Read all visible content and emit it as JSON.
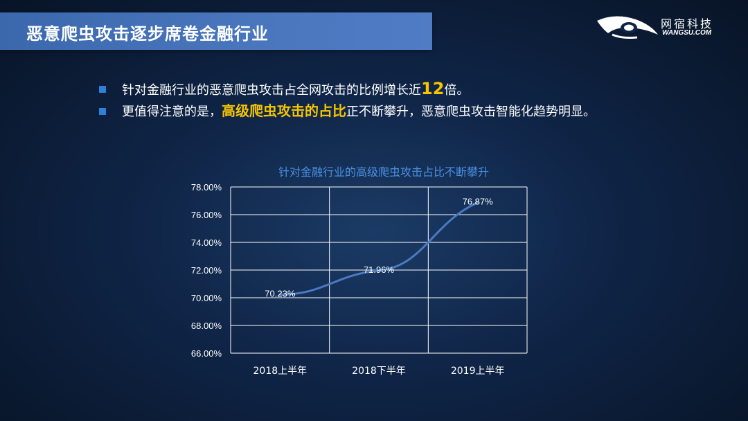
{
  "header": {
    "title": "恶意爬虫攻击逐步席卷金融行业"
  },
  "logo": {
    "cn_text": "网宿科技",
    "en_text": "WANGSU.COM"
  },
  "bullets": [
    {
      "pre": "针对金融行业的恶意爬虫攻击占全网攻击的比例增长近",
      "highlight": "12",
      "post": "倍。"
    },
    {
      "pre": "更值得注意的是，",
      "highlight": "高级爬虫攻击的占比",
      "post": "正不断攀升，恶意爬虫攻击智能化趋势明显。"
    }
  ],
  "colors": {
    "accent": "#f7c600",
    "title_bar": "#4472c4",
    "bullet_marker": "#2f80d6",
    "line": "#4a7ac0",
    "chart_title": "#4a90e2",
    "grid": "#ffffff"
  },
  "chart_data": {
    "type": "line",
    "title": "针对金融行业的高级爬虫攻击占比不断攀升",
    "categories": [
      "2018上半年",
      "2018下半年",
      "2019上半年"
    ],
    "series": [
      {
        "values": [
          70.23,
          71.96,
          76.87
        ],
        "labels": [
          "70.23%",
          "71.96%",
          "76.87%"
        ]
      }
    ],
    "ylim": [
      66,
      78
    ],
    "yticks": [
      "66.00%",
      "68.00%",
      "70.00%",
      "72.00%",
      "74.00%",
      "76.00%",
      "78.00%"
    ],
    "xlabel": "",
    "ylabel": "",
    "grid": true
  }
}
